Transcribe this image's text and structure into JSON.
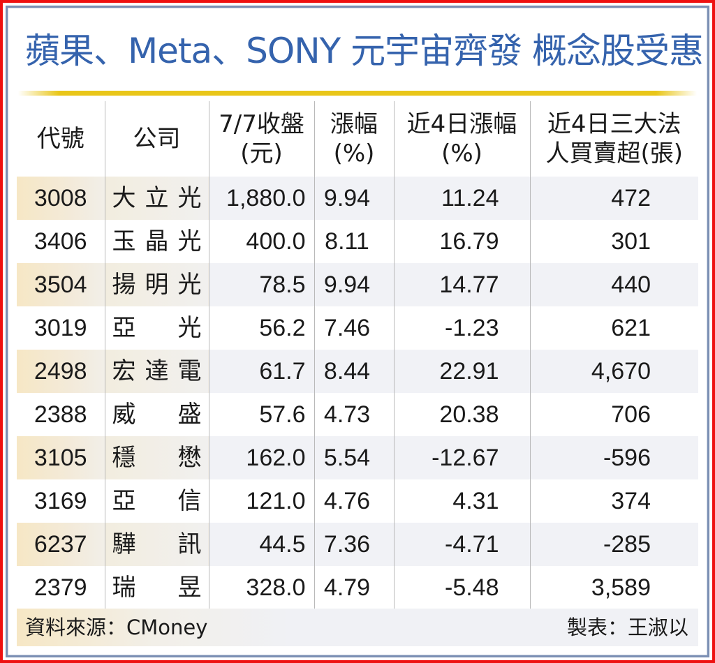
{
  "title": "蘋果、Meta、SONY 元宇宙齊發 概念股受惠",
  "colors": {
    "title": "#3563ad",
    "accent_rule": "#e9c619",
    "outer_border": "#ee1111",
    "inner_border": "#7b8fb3",
    "row_shade": "#f1f2f6",
    "row_shade_warm": "#f6e7c5"
  },
  "table": {
    "headers": [
      {
        "line1": "代號",
        "line2": ""
      },
      {
        "line1": "公司",
        "line2": ""
      },
      {
        "line1": "7/7收盤",
        "line2": "(元)"
      },
      {
        "line1": "漲幅",
        "line2": "(%)"
      },
      {
        "line1": "近4日漲幅",
        "line2": "(%)"
      },
      {
        "line1": "近4日三大法",
        "line2": "人買賣超(張)"
      }
    ],
    "rows": [
      {
        "code": "3008",
        "name": [
          "大",
          "立",
          "光"
        ],
        "close": "1,880.0",
        "change": "9.94",
        "change_4d": "11.24",
        "institutional_net": "472"
      },
      {
        "code": "3406",
        "name": [
          "玉",
          "晶",
          "光"
        ],
        "close": "400.0",
        "change": "8.11",
        "change_4d": "16.79",
        "institutional_net": "301"
      },
      {
        "code": "3504",
        "name": [
          "揚",
          "明",
          "光"
        ],
        "close": "78.5",
        "change": "9.94",
        "change_4d": "14.77",
        "institutional_net": "440"
      },
      {
        "code": "3019",
        "name": [
          "亞",
          "光"
        ],
        "close": "56.2",
        "change": "7.46",
        "change_4d": "-1.23",
        "institutional_net": "621"
      },
      {
        "code": "2498",
        "name": [
          "宏",
          "達",
          "電"
        ],
        "close": "61.7",
        "change": "8.44",
        "change_4d": "22.91",
        "institutional_net": "4,670"
      },
      {
        "code": "2388",
        "name": [
          "威",
          "盛"
        ],
        "close": "57.6",
        "change": "4.73",
        "change_4d": "20.38",
        "institutional_net": "706"
      },
      {
        "code": "3105",
        "name": [
          "穩",
          "懋"
        ],
        "close": "162.0",
        "change": "5.54",
        "change_4d": "-12.67",
        "institutional_net": "-596"
      },
      {
        "code": "3169",
        "name": [
          "亞",
          "信"
        ],
        "close": "121.0",
        "change": "4.76",
        "change_4d": "4.31",
        "institutional_net": "374"
      },
      {
        "code": "6237",
        "name": [
          "驊",
          "訊"
        ],
        "close": "44.5",
        "change": "7.36",
        "change_4d": "-4.71",
        "institutional_net": "-285"
      },
      {
        "code": "2379",
        "name": [
          "瑞",
          "昱"
        ],
        "close": "328.0",
        "change": "4.79",
        "change_4d": "-5.48",
        "institutional_net": "3,589"
      }
    ]
  },
  "footer": {
    "source": "資料來源：CMoney",
    "maker": "製表：王淑以"
  }
}
